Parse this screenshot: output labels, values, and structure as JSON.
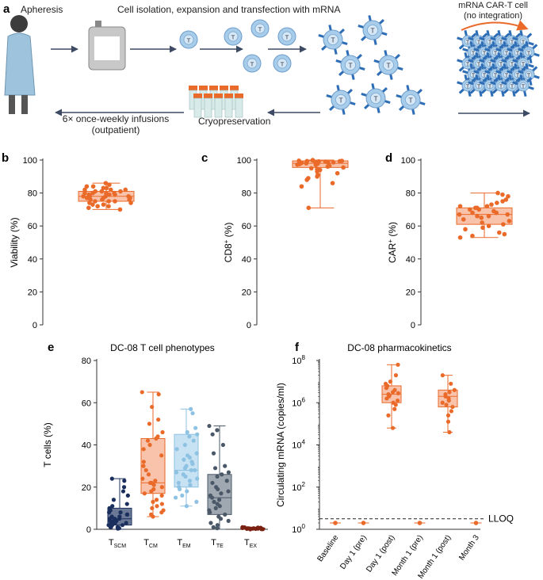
{
  "colors": {
    "orange": "#ea6a2a",
    "orange_fill": "#f4a37c",
    "navy": "#1b2f5e",
    "light_blue": "#8ec2e3",
    "slate": "#4a5868",
    "dark_red": "#7a2010",
    "cell_blue": "#a8cdea",
    "arrow": "#3d4a63",
    "patient": "#9ec3dc"
  },
  "panel_a": {
    "letter": "a",
    "apheresis": "Apheresis",
    "process": "Cell isolation, expansion and transfection with mRNA",
    "car_t_line1": "mRNA CAR-T cell",
    "car_t_line2": "(no integration)",
    "infusions_line1": "6× once-weekly infusions",
    "infusions_line2": "(outpatient)",
    "cryo": "Cryopreservation",
    "cell_label": "T"
  },
  "chart_data": [
    {
      "panel": "b",
      "type": "box",
      "ylabel": "Viability (%)",
      "ylim": [
        0,
        100
      ],
      "yticks": [
        0,
        20,
        40,
        60,
        80,
        100
      ],
      "box": {
        "min": 70,
        "q1": 75,
        "median": 78,
        "q3": 81,
        "max": 86
      },
      "points": [
        86,
        85,
        84,
        84,
        83,
        83,
        82,
        82,
        82,
        81,
        81,
        81,
        80,
        80,
        80,
        80,
        79,
        79,
        79,
        78,
        78,
        78,
        78,
        77,
        77,
        77,
        76,
        76,
        76,
        75,
        75,
        75,
        74,
        74,
        73,
        73,
        72,
        72,
        71,
        70
      ]
    },
    {
      "panel": "c",
      "type": "box",
      "ylabel": "CD8",
      "ylabel_sup": "+",
      "ylabel_suffix": " (%)",
      "ylim": [
        0,
        100
      ],
      "yticks": [
        0,
        20,
        40,
        60,
        80,
        100
      ],
      "box": {
        "min": 71,
        "q1": 95.5,
        "median": 98,
        "q3": 99.5,
        "max": 100
      },
      "points": [
        100,
        99.8,
        99.6,
        99.5,
        99.4,
        99.3,
        99.2,
        99,
        99,
        98.8,
        98.6,
        98.5,
        98.3,
        98,
        97.8,
        97.5,
        97.2,
        97,
        96.5,
        96,
        95.5,
        95,
        94.5,
        94,
        93,
        92,
        91,
        90,
        89,
        88,
        86,
        84,
        71
      ]
    },
    {
      "panel": "d",
      "type": "box",
      "ylabel": "CAR",
      "ylabel_sup": "+",
      "ylabel_suffix": " (%)",
      "ylim": [
        0,
        100
      ],
      "yticks": [
        0,
        20,
        40,
        60,
        80,
        100
      ],
      "box": {
        "min": 53,
        "q1": 61,
        "median": 67,
        "q3": 71,
        "max": 80
      },
      "points": [
        80,
        79,
        78,
        76,
        75,
        74,
        73,
        72,
        72,
        71,
        71,
        70,
        70,
        69,
        68,
        68,
        67,
        67,
        66,
        66,
        65,
        64,
        63,
        62,
        61,
        60,
        59,
        58,
        56,
        55,
        54,
        53
      ]
    },
    {
      "panel": "e",
      "type": "box",
      "title": "DC-08 T cell phenotypes",
      "ylabel": "T cells (%)",
      "ylim": [
        0,
        80
      ],
      "yticks": [
        0,
        20,
        40,
        60,
        80
      ],
      "categories": [
        {
          "main": "T",
          "sub": "SCM"
        },
        {
          "main": "T",
          "sub": "CM"
        },
        {
          "main": "T",
          "sub": "EM"
        },
        {
          "main": "T",
          "sub": "TE"
        },
        {
          "main": "T",
          "sub": "EX"
        }
      ],
      "series": [
        {
          "name": "TSCM",
          "color_key": "navy",
          "box": {
            "min": 0,
            "q1": 2,
            "median": 5,
            "q3": 10,
            "max": 24
          },
          "points": [
            24,
            23,
            20,
            18,
            16,
            14,
            12,
            11,
            10,
            9,
            8,
            8,
            7,
            7,
            6,
            6,
            5,
            5,
            5,
            4,
            4,
            4,
            3,
            3,
            3,
            2,
            2,
            2,
            1,
            1,
            1,
            0.5,
            0.3
          ]
        },
        {
          "name": "TCM",
          "color_key": "orange",
          "box": {
            "min": 6,
            "q1": 17,
            "median": 22,
            "q3": 43,
            "max": 65
          },
          "points": [
            65,
            64,
            58,
            52,
            50,
            46,
            44,
            43,
            42,
            40,
            38,
            35,
            32,
            30,
            28,
            26,
            24,
            23,
            22,
            22,
            21,
            20,
            19,
            18,
            17,
            16,
            14,
            13,
            12,
            11,
            10,
            9,
            8,
            7,
            6
          ]
        },
        {
          "name": "TEM",
          "color_key": "light_blue",
          "box": {
            "min": 11,
            "q1": 20,
            "median": 28,
            "q3": 45,
            "max": 57
          },
          "points": [
            57,
            55,
            48,
            46,
            45,
            44,
            42,
            40,
            38,
            36,
            35,
            34,
            33,
            32,
            31,
            30,
            29,
            28,
            28,
            27,
            26,
            25,
            24,
            23,
            22,
            21,
            20,
            19,
            18,
            16,
            15,
            13,
            11
          ]
        },
        {
          "name": "TTE",
          "color_key": "slate",
          "box": {
            "min": 0,
            "q1": 7,
            "median": 15,
            "q3": 26,
            "max": 49
          },
          "points": [
            49,
            47,
            45,
            40,
            36,
            30,
            29,
            27,
            26,
            25,
            23,
            22,
            20,
            19,
            18,
            17,
            16,
            15,
            14,
            13,
            12,
            11,
            10,
            9,
            8,
            7,
            6,
            5,
            4,
            3,
            2,
            1,
            0.5
          ]
        },
        {
          "name": "TEX",
          "color_key": "dark_red",
          "box": {
            "min": 0,
            "q1": 0.1,
            "median": 0.3,
            "q3": 0.6,
            "max": 1
          },
          "points": [
            1,
            0.9,
            0.8,
            0.7,
            0.6,
            0.5,
            0.5,
            0.4,
            0.4,
            0.3,
            0.3,
            0.2,
            0.2,
            0.1,
            0.1,
            0
          ]
        }
      ]
    },
    {
      "panel": "f",
      "type": "box",
      "title": "DC-08 pharmacokinetics",
      "ylabel": "Circulating mRNA (copies/ml)",
      "yscale": "log10",
      "ylim_exponent": [
        0,
        8
      ],
      "yticks_exponent": [
        0,
        2,
        4,
        6,
        8
      ],
      "ytick_base": "10",
      "lloq_label": "LLOQ",
      "lloq_log10": 0.5,
      "categories": [
        "Baseline",
        "Day 1 (pre)",
        "Day 1 (post)",
        "Month 1 (pre)",
        "Month 1 (post)",
        "Month 3"
      ],
      "series": [
        {
          "name": "Baseline",
          "below_lloq": true,
          "value_log10": 0.3
        },
        {
          "name": "Day 1 (pre)",
          "below_lloq": true,
          "value_log10": 0.3
        },
        {
          "name": "Day 1 (post)",
          "box_log10": {
            "min": 4.8,
            "q1": 6.0,
            "median": 6.4,
            "q3": 6.8,
            "max": 7.8
          },
          "points_log10": [
            7.8,
            7.3,
            7.0,
            6.9,
            6.8,
            6.7,
            6.6,
            6.5,
            6.45,
            6.4,
            6.35,
            6.3,
            6.2,
            6.1,
            6.0,
            5.9,
            5.7,
            5.4,
            4.8
          ]
        },
        {
          "name": "Month 1 (pre)",
          "below_lloq": true,
          "value_log10": 0.3
        },
        {
          "name": "Month 1 (post)",
          "box_log10": {
            "min": 4.6,
            "q1": 5.8,
            "median": 6.3,
            "q3": 6.6,
            "max": 7.3
          },
          "points_log10": [
            7.3,
            6.9,
            6.6,
            6.5,
            6.4,
            6.3,
            6.2,
            6.1,
            6.0,
            5.9,
            5.8,
            5.6,
            5.4,
            5.1,
            4.6
          ]
        },
        {
          "name": "Month 3",
          "below_lloq": true,
          "value_log10": 0.3
        }
      ]
    }
  ]
}
